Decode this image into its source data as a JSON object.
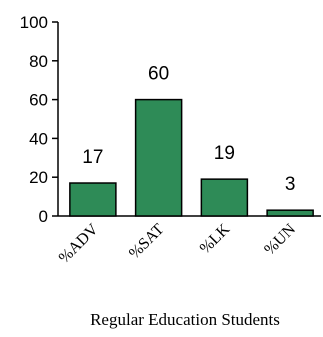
{
  "chart_data": {
    "type": "bar",
    "categories": [
      "%ADV",
      "%SAT",
      "%LK",
      "%UN"
    ],
    "values": [
      17,
      60,
      19,
      3
    ],
    "data_labels": [
      "17",
      "60",
      "19",
      "3"
    ],
    "ylim": [
      0,
      100
    ],
    "yticks": [
      0,
      20,
      40,
      60,
      80,
      100
    ],
    "xlabel": "Regular Education Students",
    "ylabel": "",
    "title": "",
    "grid": false,
    "colors": {
      "bar": "#2e8b57",
      "axis": "#000000"
    }
  }
}
